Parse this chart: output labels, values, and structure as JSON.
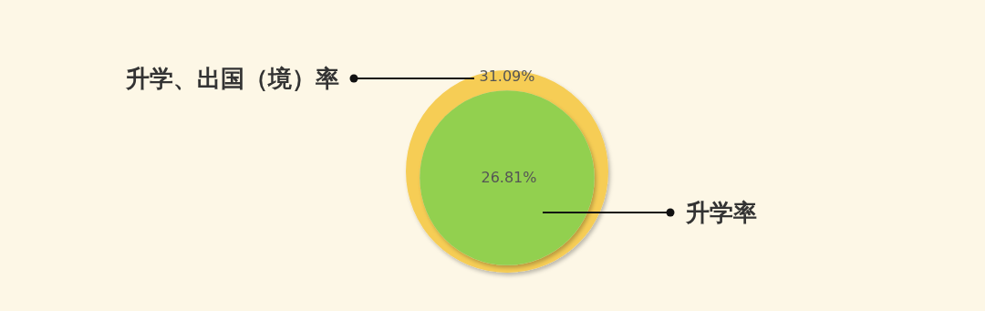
{
  "chart_data": {
    "type": "other",
    "categories": [
      "升学、出国（境）率",
      "升学率"
    ],
    "values": [
      31.09,
      26.81
    ],
    "colors": [
      "#f6cd55",
      "#92d050"
    ],
    "value_labels": [
      "31.09%",
      "26.81%"
    ]
  }
}
